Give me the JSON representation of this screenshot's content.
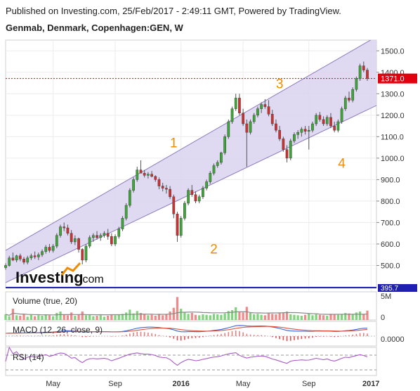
{
  "header": {
    "published": "Published on Investing.com, 25/Feb/2017 - 2:49:11 GMT, Powered by TradingView.",
    "symbol": "Genmab, Denmark, Copenhagen:GEN, W"
  },
  "logo": {
    "brand": "Investing",
    "suffix": ".com"
  },
  "colors": {
    "up": "#3aaa35",
    "down": "#d32f2f",
    "channel_fill": "#d9d2ef",
    "channel_line": "#8c7bbd",
    "last_price": "#e3000f",
    "separator": "#1f1fb0",
    "macd_line": "#3a64d8",
    "signal_line": "#e0503c",
    "rsi_line": "#a85cc6",
    "volume_ma": "#888888",
    "wave_label": "#f08c00"
  },
  "chart_data": {
    "type": "candlestick",
    "timeframe": "W",
    "x_ticks": [
      {
        "label": "May",
        "week": 13
      },
      {
        "label": "Sep",
        "week": 30
      },
      {
        "label": "2016",
        "week": 48
      },
      {
        "label": "May",
        "week": 65
      },
      {
        "label": "Sep",
        "week": 83
      },
      {
        "label": "2017",
        "week": 100
      }
    ],
    "price_axis": {
      "ylim": [
        400,
        1550
      ],
      "ticks": [
        "1500.0",
        "1400.0",
        "1300.0",
        "1200.0",
        "1100.0",
        "1000.0",
        "900.0",
        "800.0",
        "700.0",
        "600.0",
        "500.0"
      ],
      "last_price": "1371.0",
      "bottom_cut_label": "395.7"
    },
    "channel": {
      "upper": [
        {
          "week": 0,
          "price": 570
        },
        {
          "week": 107,
          "price": 1620
        }
      ],
      "lower": [
        {
          "week": 0,
          "price": 420
        },
        {
          "week": 107,
          "price": 1290
        }
      ]
    },
    "wave_labels": [
      {
        "label": "1",
        "week": 46,
        "price": 1050
      },
      {
        "label": "2",
        "week": 57,
        "price": 555
      },
      {
        "label": "3",
        "week": 75,
        "price": 1325
      },
      {
        "label": "4",
        "week": 92,
        "price": 955
      }
    ],
    "candles_ohlc": [
      [
        490,
        510,
        480,
        500
      ],
      [
        500,
        545,
        495,
        535
      ],
      [
        535,
        560,
        520,
        525
      ],
      [
        525,
        550,
        515,
        545
      ],
      [
        545,
        555,
        520,
        530
      ],
      [
        530,
        540,
        505,
        515
      ],
      [
        515,
        545,
        505,
        535
      ],
      [
        535,
        555,
        525,
        545
      ],
      [
        545,
        565,
        530,
        540
      ],
      [
        540,
        560,
        525,
        550
      ],
      [
        550,
        575,
        540,
        565
      ],
      [
        565,
        595,
        555,
        585
      ],
      [
        585,
        600,
        560,
        570
      ],
      [
        570,
        600,
        560,
        590
      ],
      [
        590,
        650,
        580,
        640
      ],
      [
        640,
        690,
        630,
        680
      ],
      [
        680,
        700,
        660,
        675
      ],
      [
        675,
        690,
        640,
        650
      ],
      [
        650,
        665,
        600,
        610
      ],
      [
        610,
        640,
        595,
        625
      ],
      [
        625,
        630,
        560,
        575
      ],
      [
        575,
        580,
        505,
        525
      ],
      [
        525,
        600,
        515,
        590
      ],
      [
        590,
        640,
        580,
        630
      ],
      [
        630,
        650,
        610,
        640
      ],
      [
        640,
        660,
        620,
        630
      ],
      [
        630,
        650,
        615,
        640
      ],
      [
        640,
        660,
        630,
        650
      ],
      [
        650,
        670,
        620,
        635
      ],
      [
        635,
        650,
        590,
        600
      ],
      [
        600,
        645,
        590,
        635
      ],
      [
        635,
        680,
        625,
        670
      ],
      [
        670,
        730,
        660,
        720
      ],
      [
        720,
        790,
        710,
        780
      ],
      [
        780,
        860,
        770,
        850
      ],
      [
        850,
        910,
        840,
        900
      ],
      [
        900,
        960,
        890,
        945
      ],
      [
        945,
        990,
        935,
        930
      ],
      [
        930,
        945,
        910,
        920
      ],
      [
        920,
        935,
        905,
        925
      ],
      [
        925,
        940,
        910,
        915
      ],
      [
        915,
        920,
        890,
        900
      ],
      [
        900,
        910,
        855,
        870
      ],
      [
        870,
        885,
        845,
        860
      ],
      [
        860,
        875,
        835,
        855
      ],
      [
        855,
        870,
        810,
        820
      ],
      [
        820,
        830,
        720,
        740
      ],
      [
        740,
        750,
        610,
        640
      ],
      [
        640,
        730,
        630,
        720
      ],
      [
        720,
        800,
        710,
        790
      ],
      [
        790,
        860,
        780,
        850
      ],
      [
        850,
        875,
        820,
        830
      ],
      [
        830,
        845,
        790,
        800
      ],
      [
        800,
        830,
        790,
        820
      ],
      [
        820,
        870,
        810,
        860
      ],
      [
        860,
        900,
        850,
        890
      ],
      [
        890,
        940,
        880,
        930
      ],
      [
        930,
        975,
        920,
        965
      ],
      [
        965,
        990,
        955,
        980
      ],
      [
        980,
        1030,
        970,
        1025
      ],
      [
        1025,
        1110,
        1015,
        1100
      ],
      [
        1100,
        1180,
        1090,
        1170
      ],
      [
        1170,
        1240,
        1160,
        1230
      ],
      [
        1230,
        1300,
        1220,
        1280
      ],
      [
        1280,
        1300,
        1200,
        1210
      ],
      [
        1210,
        1230,
        1150,
        1160
      ],
      [
        1160,
        1180,
        960,
        1120
      ],
      [
        1120,
        1180,
        1110,
        1170
      ],
      [
        1170,
        1210,
        1160,
        1200
      ],
      [
        1200,
        1240,
        1190,
        1230
      ],
      [
        1230,
        1260,
        1210,
        1250
      ],
      [
        1250,
        1275,
        1230,
        1240
      ],
      [
        1240,
        1270,
        1195,
        1205
      ],
      [
        1205,
        1225,
        1150,
        1160
      ],
      [
        1160,
        1180,
        1120,
        1130
      ],
      [
        1130,
        1150,
        1080,
        1090
      ],
      [
        1090,
        1100,
        1030,
        1040
      ],
      [
        1040,
        1060,
        980,
        1000
      ],
      [
        1000,
        1090,
        990,
        1080
      ],
      [
        1080,
        1120,
        1070,
        1110
      ],
      [
        1110,
        1130,
        1090,
        1120
      ],
      [
        1120,
        1145,
        1100,
        1135
      ],
      [
        1135,
        1150,
        1110,
        1125
      ],
      [
        1125,
        1150,
        1040,
        1130
      ],
      [
        1130,
        1170,
        1120,
        1160
      ],
      [
        1160,
        1210,
        1150,
        1200
      ],
      [
        1200,
        1215,
        1170,
        1180
      ],
      [
        1180,
        1195,
        1150,
        1160
      ],
      [
        1160,
        1200,
        1150,
        1190
      ],
      [
        1190,
        1210,
        1140,
        1150
      ],
      [
        1150,
        1170,
        1120,
        1130
      ],
      [
        1130,
        1180,
        1120,
        1170
      ],
      [
        1170,
        1240,
        1160,
        1230
      ],
      [
        1230,
        1290,
        1220,
        1280
      ],
      [
        1280,
        1310,
        1260,
        1270
      ],
      [
        1270,
        1330,
        1260,
        1320
      ],
      [
        1320,
        1380,
        1310,
        1370
      ],
      [
        1370,
        1440,
        1360,
        1430
      ],
      [
        1430,
        1450,
        1400,
        1410
      ],
      [
        1410,
        1420,
        1360,
        1371
      ]
    ],
    "volume": {
      "title": "Volume (true, 20)",
      "ticks": [
        "5M",
        "0"
      ],
      "ylim": [
        0,
        6
      ],
      "values": [
        1.2,
        0.8,
        2.4,
        1.0,
        0.9,
        1.3,
        0.7,
        1.1,
        0.8,
        1.0,
        0.9,
        1.2,
        1.0,
        0.8,
        1.5,
        1.8,
        1.1,
        1.0,
        1.6,
        0.9,
        1.2,
        1.8,
        1.0,
        1.1,
        0.8,
        0.9,
        1.0,
        0.7,
        0.9,
        1.2,
        1.0,
        1.1,
        1.3,
        1.6,
        2.2,
        1.4,
        1.9,
        1.5,
        1.2,
        1.0,
        1.1,
        0.9,
        1.3,
        1.0,
        1.2,
        1.8,
        2.6,
        4.9,
        2.4,
        1.6,
        1.3,
        1.5,
        1.1,
        1.0,
        1.2,
        1.1,
        1.0,
        1.3,
        1.2,
        1.1,
        1.4,
        1.9,
        2.1,
        2.7,
        1.8,
        1.6,
        2.8,
        1.5,
        1.2,
        1.3,
        1.1,
        1.0,
        1.4,
        1.3,
        1.2,
        1.5,
        1.6,
        1.8,
        1.2,
        1.1,
        1.0,
        0.9,
        1.1,
        1.4,
        1.0,
        1.2,
        1.1,
        1.0,
        0.9,
        1.3,
        1.2,
        1.1,
        1.3,
        1.5,
        1.4,
        1.2,
        1.6,
        1.8,
        1.3,
        2.0
      ]
    },
    "macd": {
      "title": "MACD (12, 26, close, 9)",
      "tick": "0.0000"
    },
    "rsi": {
      "title": "RSI (14)"
    }
  }
}
